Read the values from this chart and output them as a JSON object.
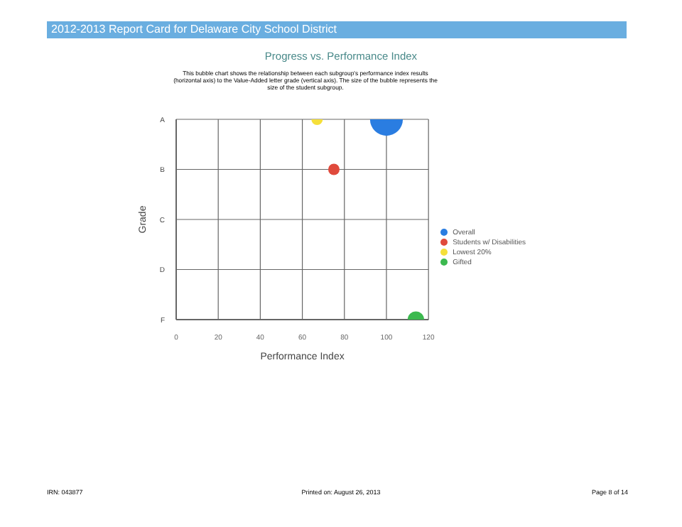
{
  "chart_data": {
    "type": "bubble",
    "title": "Progress vs. Performance Index",
    "subtitle": "This bubble chart shows the relationship between each subgroup's performance index results (horizontal axis) to the Value-Added letter grade (vertical axis).  The size of the bubble represents the size of the student subgroup.",
    "xlabel": "Performance Index",
    "ylabel": "Grade",
    "annotations": [
      "2012-2013 Report Card for Delaware City School District",
      "IRN: 043877",
      "Printed on: August 26, 2013",
      "Page 8 of 14"
    ],
    "series": [
      {
        "name": "Overall",
        "color": "#2a7de1",
        "x": [
          "A"
        ],
        "values": [
          100
        ],
        "sizes": [
          1
        ]
      },
      {
        "name": "Students w/ Disabilities",
        "color": "#e04a3c",
        "x": [
          "B"
        ],
        "values": [
          75
        ],
        "sizes": [
          0.12
        ]
      },
      {
        "name": "Lowest 20%",
        "color": "#f5df3a",
        "x": [
          "A"
        ],
        "values": [
          67
        ],
        "sizes": [
          0.12
        ]
      },
      {
        "name": "Gifted",
        "color": "#3cb94f",
        "x": [
          "F"
        ],
        "values": [
          114
        ],
        "sizes": [
          0.25
        ]
      }
    ],
    "categories": [
      "A",
      "B",
      "C",
      "D",
      "F"
    ],
    "orientation": "horizontal",
    "xlim": [
      0,
      120
    ],
    "xticks": [
      0,
      20,
      40,
      60,
      80,
      100,
      120
    ],
    "grid": true,
    "legend": "right",
    "relative": false
  }
}
